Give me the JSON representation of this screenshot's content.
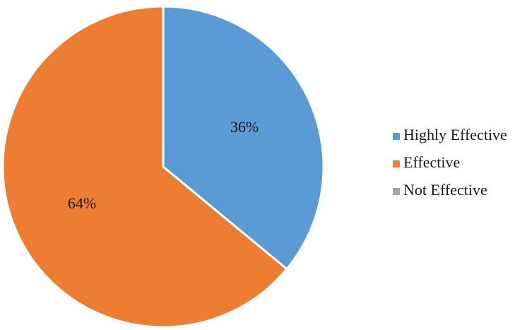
{
  "chart_data": {
    "type": "pie",
    "title": "",
    "slices": [
      {
        "label": "Highly Effective",
        "value": 36,
        "display": "36%",
        "color": "#5b9bd5"
      },
      {
        "label": "Effective",
        "value": 64,
        "display": "64%",
        "color": "#ed7d31"
      },
      {
        "label": "Not Effective",
        "value": 0,
        "display": "",
        "color": "#a5a5a5"
      }
    ],
    "legend": {
      "placement": "right",
      "entries": [
        "Highly Effective",
        "Effective",
        "Not Effective"
      ]
    }
  }
}
